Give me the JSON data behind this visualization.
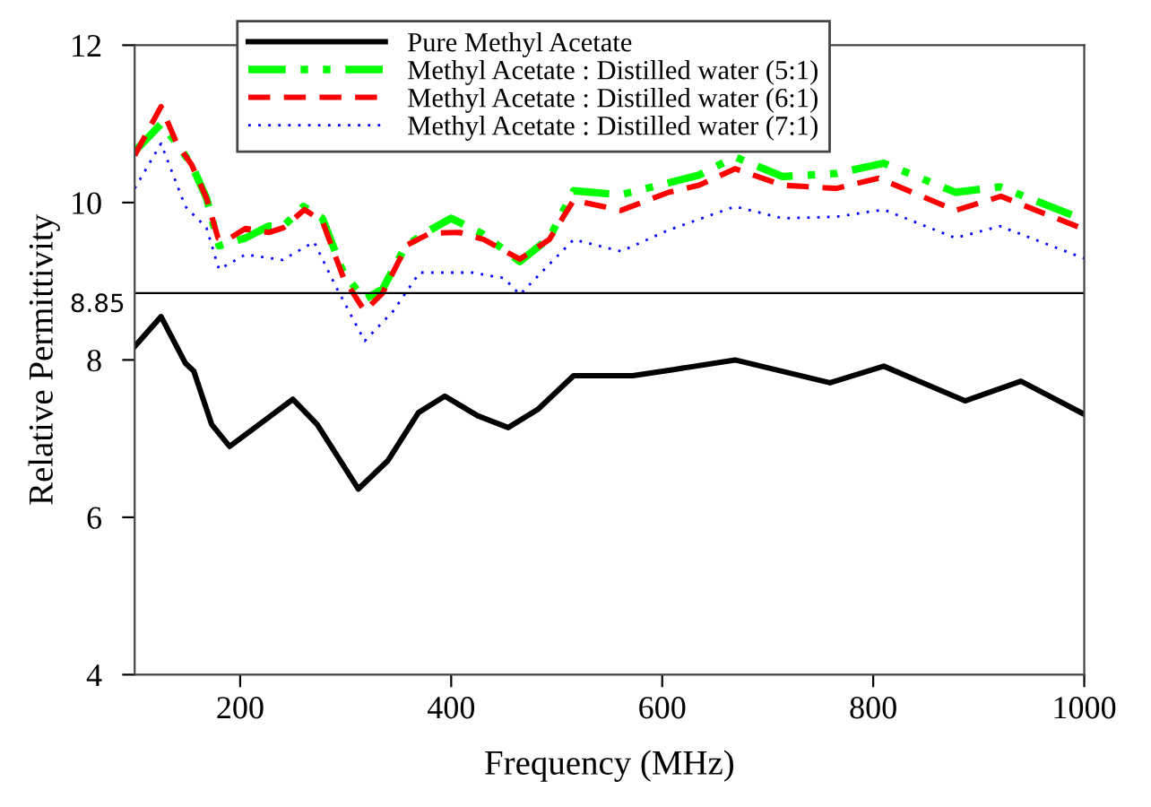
{
  "chart_data": {
    "type": "line",
    "xlabel": "Frequency (MHz)",
    "ylabel": "Relative Permittivity",
    "xlim": [
      100,
      1000
    ],
    "xticks": [
      200,
      400,
      600,
      800,
      1000
    ],
    "ylim": [
      4,
      12
    ],
    "yticks": [
      4,
      6,
      8,
      10,
      12
    ],
    "grid": false,
    "legend": "top",
    "marker": "none",
    "ref_lines": [
      {
        "axis": "y",
        "value": 8.85,
        "label": "8.85",
        "color": "#000000"
      }
    ],
    "series": [
      {
        "name": "Pure Methyl Acetate",
        "color": "#000000",
        "line_style": "solid",
        "x": [
          100,
          125,
          148,
          156,
          173,
          190,
          222,
          250,
          273,
          312,
          340,
          369,
          394,
          425,
          454,
          482,
          516,
          572,
          612,
          669,
          759,
          810,
          887,
          940,
          1000
        ],
        "values": [
          8.17,
          8.55,
          7.96,
          7.86,
          7.18,
          6.9,
          7.22,
          7.5,
          7.18,
          6.36,
          6.72,
          7.33,
          7.54,
          7.29,
          7.14,
          7.37,
          7.8,
          7.8,
          7.88,
          8.0,
          7.71,
          7.92,
          7.48,
          7.73,
          7.31
        ]
      },
      {
        "name": "Methyl Acetate : Distilled water (5:1)",
        "color": "#00ff00",
        "line_style": "dashdot",
        "x": [
          100,
          125,
          140,
          154,
          168,
          180,
          205,
          227,
          241,
          260,
          278,
          298,
          318,
          335,
          357,
          380,
          400,
          430,
          465,
          493,
          516,
          561,
          606,
          635,
          669,
          714,
          765,
          810,
          878,
          920,
          1000
        ],
        "values": [
          10.65,
          11.0,
          10.75,
          10.48,
          10.06,
          9.45,
          9.55,
          9.7,
          9.7,
          9.95,
          9.8,
          9.1,
          8.77,
          8.9,
          9.45,
          9.65,
          9.8,
          9.6,
          9.25,
          9.55,
          10.15,
          10.1,
          10.25,
          10.35,
          10.58,
          10.33,
          10.37,
          10.5,
          10.13,
          10.2,
          9.78
        ]
      },
      {
        "name": "Methyl Acetate : Distilled water (6:1)",
        "color": "#ff0000",
        "line_style": "dashed",
        "x": [
          100,
          125,
          140,
          154,
          168,
          179,
          188,
          205,
          227,
          241,
          261,
          278,
          298,
          318,
          335,
          358,
          380,
          408,
          431,
          465,
          493,
          516,
          561,
          606,
          635,
          669,
          714,
          765,
          805,
          878,
          921,
          1000
        ],
        "values": [
          10.6,
          11.22,
          10.75,
          10.48,
          10.06,
          9.55,
          9.53,
          9.67,
          9.62,
          9.68,
          9.91,
          9.76,
          9.04,
          8.62,
          8.85,
          9.46,
          9.61,
          9.62,
          9.53,
          9.28,
          9.53,
          10.03,
          9.9,
          10.13,
          10.22,
          10.43,
          10.22,
          10.18,
          10.31,
          9.9,
          10.08,
          9.66
        ]
      },
      {
        "name": "Methyl Acetate : Distilled water (7:1)",
        "color": "#0000ff",
        "line_style": "dotted",
        "x": [
          100,
          125,
          148,
          168,
          180,
          205,
          240,
          270,
          290,
          318,
          345,
          370,
          420,
          450,
          465,
          516,
          561,
          606,
          669,
          714,
          765,
          810,
          878,
          920,
          1000
        ],
        "values": [
          10.18,
          10.75,
          9.95,
          9.68,
          9.15,
          9.34,
          9.27,
          9.5,
          8.95,
          8.24,
          8.62,
          9.11,
          9.11,
          9.04,
          8.83,
          9.53,
          9.38,
          9.65,
          9.95,
          9.8,
          9.82,
          9.91,
          9.55,
          9.7,
          9.29
        ]
      }
    ]
  }
}
